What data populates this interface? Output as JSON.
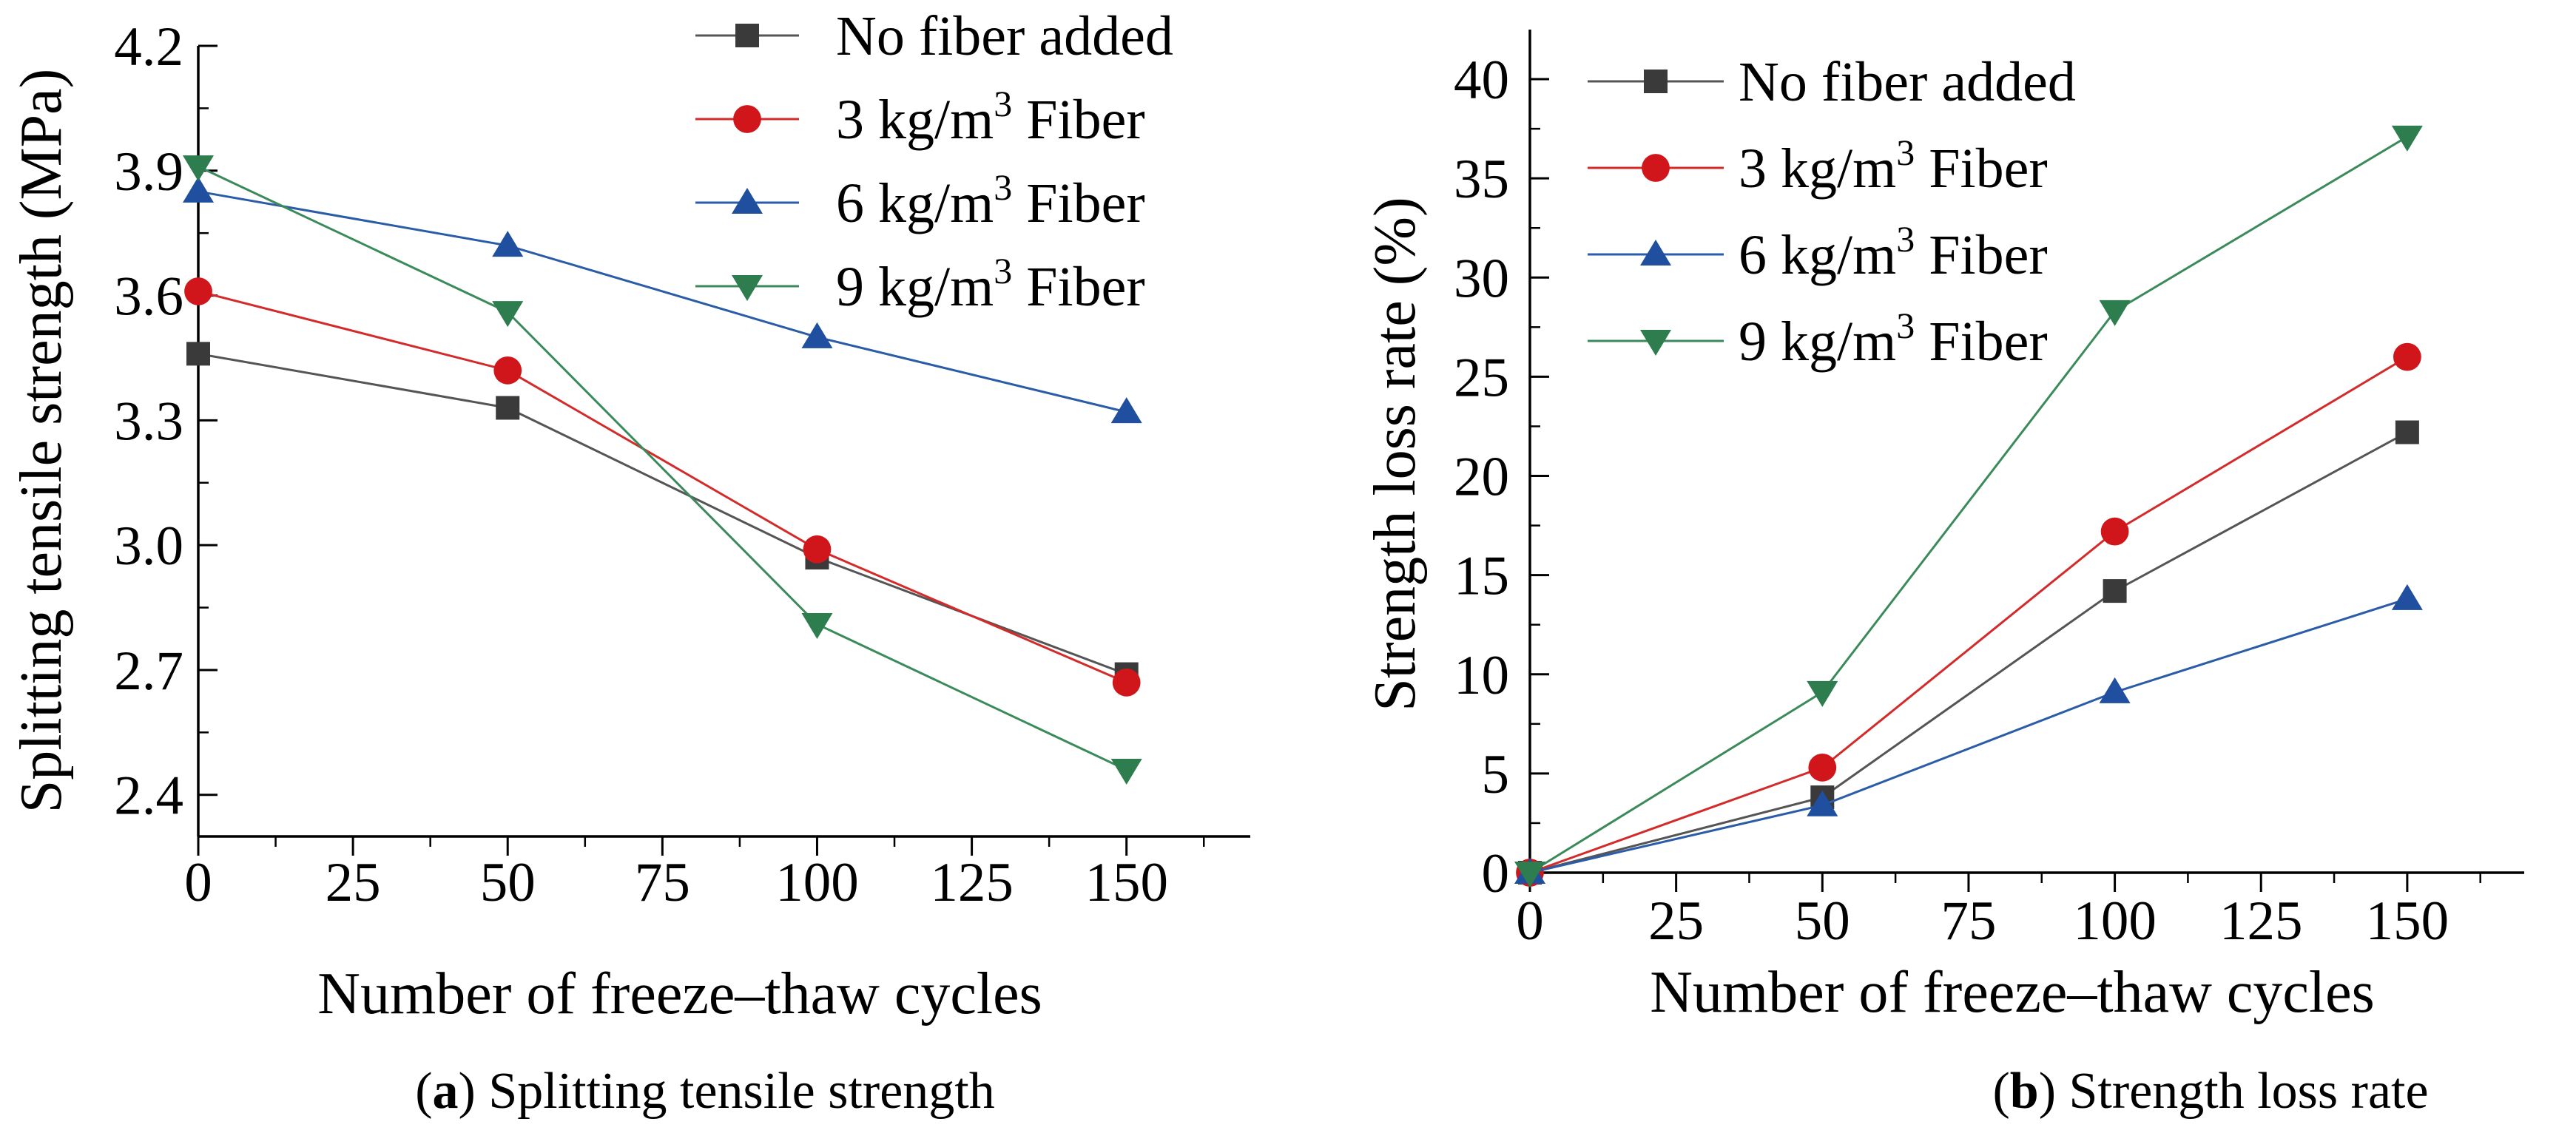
{
  "chart_data": [
    {
      "type": "line",
      "title": "",
      "xlabel": "Number of freeze–thaw cycles",
      "ylabel": "Splitting tensile strength (MPa)",
      "xlim": [
        0,
        170
      ],
      "ylim": [
        2.3,
        4.2
      ],
      "x_ticks": [
        0,
        25,
        50,
        75,
        100,
        125,
        150
      ],
      "x_tick_labels": [
        "0",
        "25",
        "50",
        "75",
        "100",
        "125",
        "150"
      ],
      "y_ticks": [
        2.4,
        2.7,
        3.0,
        3.3,
        3.6,
        3.9,
        4.2
      ],
      "y_tick_labels": [
        "2.4",
        "2.7",
        "3.0",
        "3.3",
        "3.6",
        "3.9",
        "4.2"
      ],
      "legend_position": "top-right",
      "caption": {
        "label": "a",
        "text": "Splitting tensile strength"
      },
      "series": [
        {
          "name": "No fiber added",
          "legend_main": "No fiber added",
          "legend_sup": "",
          "legend_tail": "",
          "marker": "square",
          "color": "#3a3a3a",
          "line_color": "#555555",
          "x": [
            0,
            50,
            100,
            150
          ],
          "values": [
            3.46,
            3.33,
            2.97,
            2.69
          ]
        },
        {
          "name": "3 kg/m3 Fiber",
          "legend_main": "3 kg/m",
          "legend_sup": "3",
          "legend_tail": " Fiber",
          "marker": "circle",
          "color": "#d0161b",
          "line_color": "#d42a2a",
          "x": [
            0,
            50,
            100,
            150
          ],
          "values": [
            3.61,
            3.42,
            2.99,
            2.67
          ]
        },
        {
          "name": "6 kg/m3 Fiber",
          "legend_main": "6 kg/m",
          "legend_sup": "3",
          "legend_tail": " Fiber",
          "marker": "triangle-up",
          "color": "#1f4f9e",
          "line_color": "#2a5ca8",
          "x": [
            0,
            50,
            100,
            150
          ],
          "values": [
            3.85,
            3.72,
            3.5,
            3.32
          ]
        },
        {
          "name": "9 kg/m3 Fiber",
          "legend_main": "9 kg/m",
          "legend_sup": "3",
          "legend_tail": " Fiber",
          "marker": "triangle-down",
          "color": "#2e7d4f",
          "line_color": "#3a8a5a",
          "x": [
            0,
            50,
            100,
            150
          ],
          "values": [
            3.91,
            3.56,
            2.81,
            2.46
          ]
        }
      ]
    },
    {
      "type": "line",
      "title": "",
      "xlabel": "Number of freeze–thaw cycles",
      "ylabel": "Strength loss rate (%)",
      "xlim": [
        0,
        170
      ],
      "ylim": [
        0,
        42.5
      ],
      "x_ticks": [
        0,
        25,
        50,
        75,
        100,
        125,
        150
      ],
      "x_tick_labels": [
        "0",
        "25",
        "50",
        "75",
        "100",
        "125",
        "150"
      ],
      "y_ticks": [
        0,
        5,
        10,
        15,
        20,
        25,
        30,
        35,
        40
      ],
      "y_tick_labels": [
        "0",
        "5",
        "10",
        "15",
        "20",
        "25",
        "30",
        "35",
        "40"
      ],
      "legend_position": "top-left",
      "caption": {
        "label": "b",
        "text": "Strength loss rate"
      },
      "series": [
        {
          "name": "No fiber added",
          "legend_main": "No fiber added",
          "legend_sup": "",
          "legend_tail": "",
          "marker": "square",
          "color": "#3a3a3a",
          "line_color": "#555555",
          "x": [
            0,
            50,
            100,
            150
          ],
          "values": [
            0,
            3.8,
            14.2,
            22.2
          ]
        },
        {
          "name": "3 kg/m3 Fiber",
          "legend_main": "3 kg/m",
          "legend_sup": "3",
          "legend_tail": " Fiber",
          "marker": "circle",
          "color": "#d0161b",
          "line_color": "#d42a2a",
          "x": [
            0,
            50,
            100,
            150
          ],
          "values": [
            0,
            5.3,
            17.2,
            26.0
          ]
        },
        {
          "name": "6 kg/m3 Fiber",
          "legend_main": "6 kg/m",
          "legend_sup": "3",
          "legend_tail": " Fiber",
          "marker": "triangle-up",
          "color": "#1f4f9e",
          "line_color": "#2a5ca8",
          "x": [
            0,
            50,
            100,
            150
          ],
          "values": [
            0,
            3.4,
            9.1,
            13.8
          ]
        },
        {
          "name": "9 kg/m3 Fiber",
          "legend_main": "9 kg/m",
          "legend_sup": "3",
          "legend_tail": " Fiber",
          "marker": "triangle-down",
          "color": "#2e7d4f",
          "line_color": "#3a8a5a",
          "x": [
            0,
            50,
            100,
            150
          ],
          "values": [
            0,
            9.1,
            28.3,
            37.1
          ]
        }
      ]
    }
  ]
}
